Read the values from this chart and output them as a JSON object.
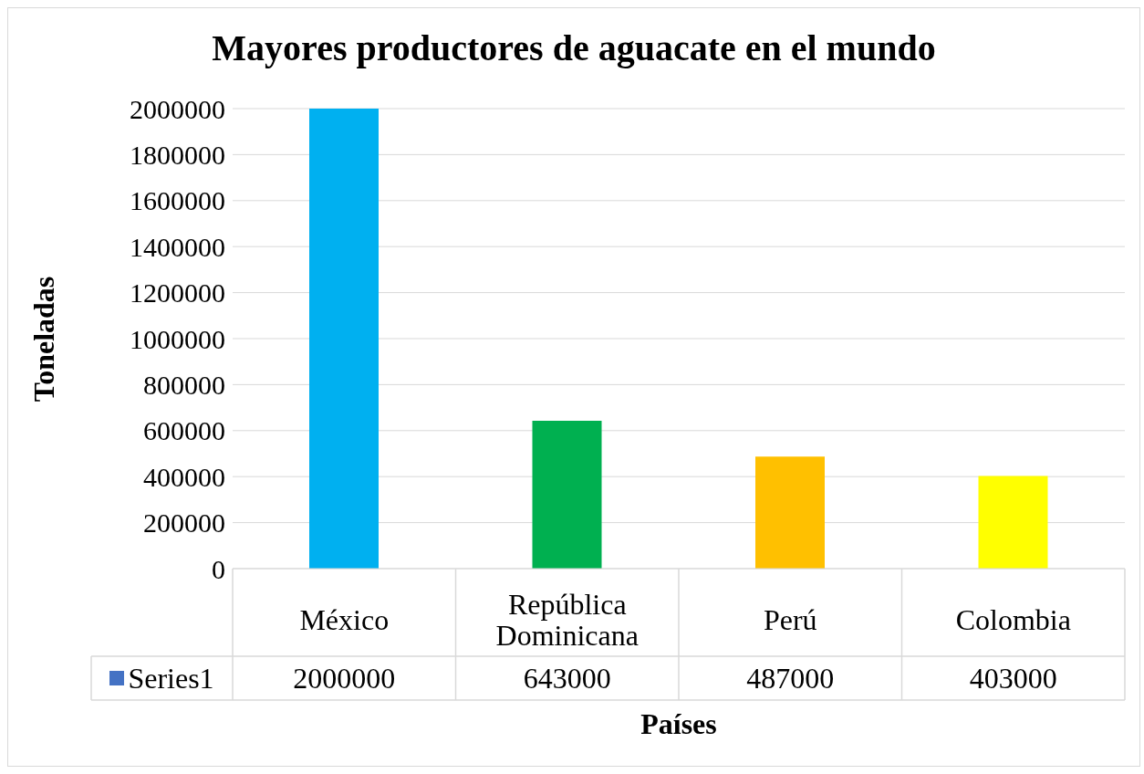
{
  "chart_data": {
    "type": "bar",
    "title": "Mayores productores de aguacate en el mundo",
    "xlabel": "Países",
    "ylabel": "Toneladas",
    "categories": [
      "México",
      "República Dominicana",
      "Perú",
      "Colombia"
    ],
    "series": [
      {
        "name": "Series1",
        "color": "#4472c4",
        "colors": [
          "#00b0f0",
          "#00b050",
          "#ffc000",
          "#ffff00"
        ],
        "values": [
          2000000,
          643000,
          487000,
          403000
        ]
      }
    ],
    "ylim": [
      0,
      2000000
    ],
    "yticks": [
      0,
      200000,
      400000,
      600000,
      800000,
      1000000,
      1200000,
      1400000,
      1600000,
      1800000,
      2000000
    ],
    "grid": "y",
    "legend": "bottom",
    "data_labels": true
  }
}
